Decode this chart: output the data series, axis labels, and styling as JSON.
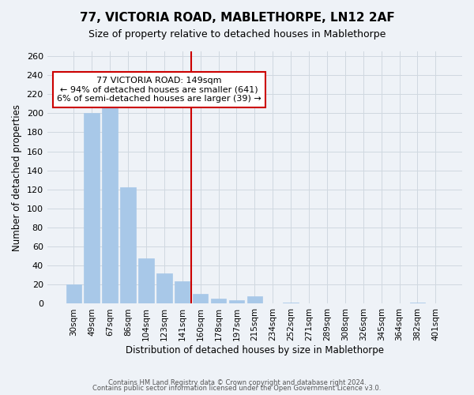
{
  "title": "77, VICTORIA ROAD, MABLETHORPE, LN12 2AF",
  "subtitle": "Size of property relative to detached houses in Mablethorpe",
  "xlabel": "Distribution of detached houses by size in Mablethorpe",
  "ylabel": "Number of detached properties",
  "bar_labels": [
    "30sqm",
    "49sqm",
    "67sqm",
    "86sqm",
    "104sqm",
    "123sqm",
    "141sqm",
    "160sqm",
    "178sqm",
    "197sqm",
    "215sqm",
    "234sqm",
    "252sqm",
    "271sqm",
    "289sqm",
    "308sqm",
    "326sqm",
    "345sqm",
    "364sqm",
    "382sqm",
    "401sqm"
  ],
  "bar_values": [
    20,
    200,
    213,
    122,
    48,
    32,
    24,
    10,
    5,
    4,
    8,
    0,
    1,
    0,
    0,
    0,
    0,
    0,
    0,
    1,
    0
  ],
  "bar_color": "#a8c8e8",
  "bar_edge_color": "#a8c8e8",
  "grid_color": "#d0d8e0",
  "background_color": "#eef2f7",
  "red_line_x": 6.5,
  "annotation_title": "77 VICTORIA ROAD: 149sqm",
  "annotation_line1": "← 94% of detached houses are smaller (641)",
  "annotation_line2": "6% of semi-detached houses are larger (39) →",
  "annotation_box_color": "#ffffff",
  "annotation_box_edge": "#cc0000",
  "red_line_color": "#cc0000",
  "ylim": [
    0,
    265
  ],
  "yticks": [
    0,
    20,
    40,
    60,
    80,
    100,
    120,
    140,
    160,
    180,
    200,
    220,
    240,
    260
  ],
  "footer1": "Contains HM Land Registry data © Crown copyright and database right 2024.",
  "footer2": "Contains public sector information licensed under the Open Government Licence v3.0."
}
